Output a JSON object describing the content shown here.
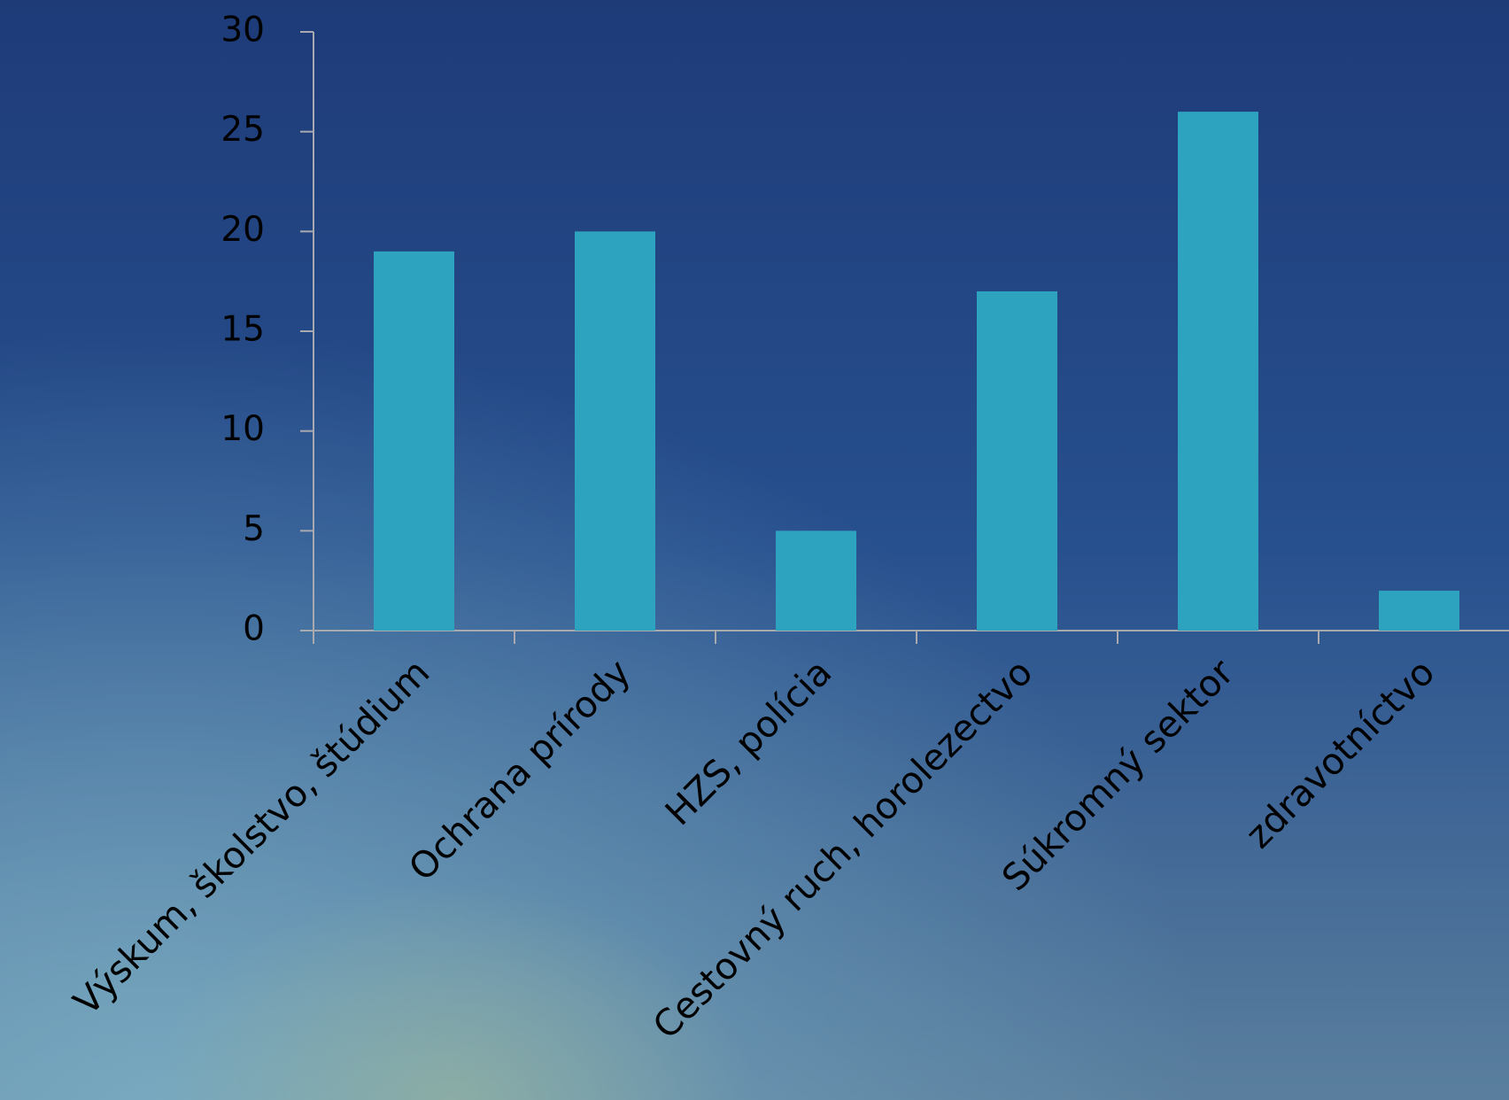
{
  "chart_data": {
    "type": "bar",
    "categories": [
      "Výskum, školstvo, štúdium",
      "Ochrana prírody",
      "HZS, polícia",
      "Cestovný ruch, horolezectvo",
      "Súkromný sektor",
      "zdravotníctvo"
    ],
    "values": [
      19,
      20,
      5,
      17,
      26,
      2
    ],
    "color": "#2ea3c0",
    "ylim": [
      0,
      30
    ],
    "yticks": [
      0,
      5,
      10,
      15,
      20,
      25,
      30
    ]
  }
}
